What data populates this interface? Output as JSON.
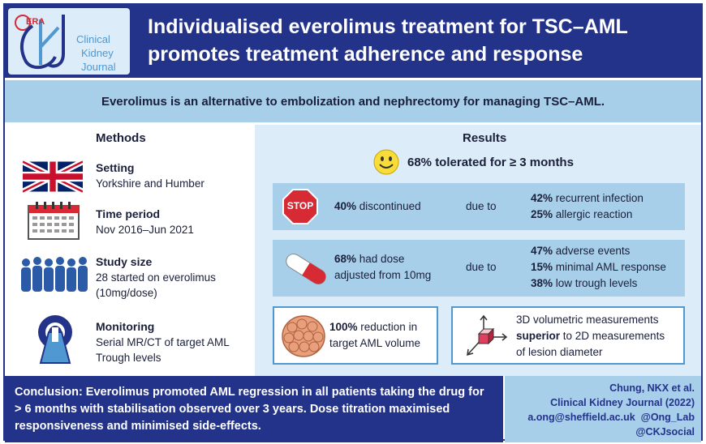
{
  "logo": {
    "era": "ERA",
    "ckj": "ckj",
    "line1": "Clinical",
    "line2": "Kidney",
    "line3": "Journal"
  },
  "header": {
    "line1": "Individualised everolimus treatment for TSC–AML",
    "line2": "promotes treatment adherence and response"
  },
  "subtitle": "Everolimus is an alternative to embolization and nephrectomy for managing TSC–AML.",
  "methods": {
    "title": "Methods",
    "setting": {
      "head": "Setting",
      "text": "Yorkshire and Humber"
    },
    "time": {
      "head": "Time period",
      "text": "Nov 2016–Jun 2021"
    },
    "study": {
      "head": "Study size",
      "text1": "28 started on everolimus",
      "text2": "(10mg/dose)"
    },
    "monitoring": {
      "head": "Monitoring",
      "text1": "Serial MR/CT of target AML",
      "text2": "Trough levels"
    }
  },
  "results": {
    "title": "Results",
    "tolerated": "68% tolerated for ≥ 3 months",
    "stop_sign": "STOP",
    "discontinued": {
      "pct": "40%",
      "text": " discontinued",
      "due": "due to",
      "reasons": [
        {
          "pct": "42%",
          "text": " recurrent infection"
        },
        {
          "pct": "25%",
          "text": " allergic reaction"
        }
      ]
    },
    "adjusted": {
      "pct": "68%",
      "text1": " had dose",
      "text2": "adjusted from 10mg",
      "due": "due to",
      "reasons": [
        {
          "pct": "47%",
          "text": " adverse events"
        },
        {
          "pct": "15%",
          "text": " minimal AML response"
        },
        {
          "pct": "38%",
          "text": " low trough levels"
        }
      ]
    },
    "reduction": {
      "pct": "100%",
      "text1": " reduction in",
      "text2": "target AML volume"
    },
    "volumetric": {
      "line1": "3D volumetric measurements",
      "bold": "superior",
      "line2": " to 2D measurements",
      "line3": "of lesion diameter"
    }
  },
  "conclusion": {
    "label": "Conclusion:",
    "text": " Everolimus promoted AML regression in all patients taking the drug for > 6 months with stabilisation observed over 3 years. Dose titration maximised responsiveness and minimised side-effects."
  },
  "citation": {
    "authors": "Chung, NKX et al.",
    "journal": "Clinical Kidney Journal (2022)",
    "contact": "a.ong@sheffield.ac.uk  @Ong_Lab",
    "social": "@CKJsocial"
  },
  "colors": {
    "navy": "#24338a",
    "light_blue": "#a8cfea",
    "pale_blue": "#dcecf8",
    "red": "#d62a34"
  }
}
